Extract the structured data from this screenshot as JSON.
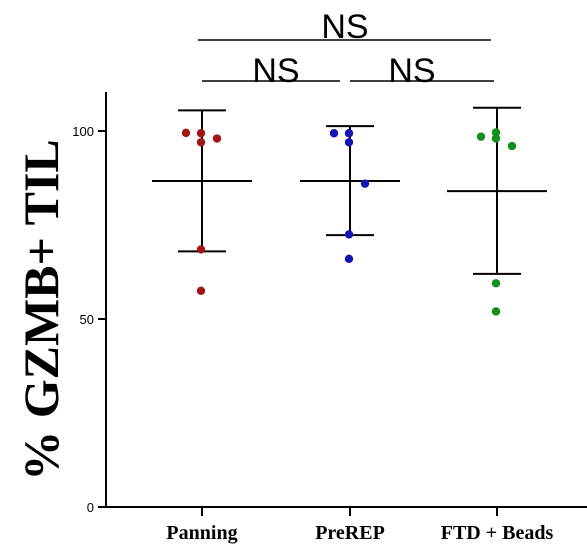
{
  "chart_data": {
    "type": "scatter",
    "ylabel": "% GZMB+ TIL",
    "ylim": [
      0,
      110
    ],
    "yticks": [
      0,
      50,
      100
    ],
    "categories": [
      "Panning",
      "PreREP",
      "FTD + Beads"
    ],
    "series": [
      {
        "category": "Panning",
        "color": "#a31515",
        "values": [
          99.5,
          99.4,
          97.0,
          98.0,
          68.5,
          57.5
        ],
        "mean": 86.7,
        "sd_upper": 105.5,
        "sd_lower": 68.0
      },
      {
        "category": "PreREP",
        "color": "#1414b4",
        "values": [
          99.4,
          99.4,
          97.0,
          86.0,
          72.5,
          66.0
        ],
        "mean": 86.7,
        "sd_upper": 101.3,
        "sd_lower": 72.3
      },
      {
        "category": "FTD + Beads",
        "color": "#12901c",
        "values": [
          98.5,
          99.6,
          98.0,
          96.0,
          59.5,
          52.0
        ],
        "mean": 84.0,
        "sd_upper": 106.2,
        "sd_lower": 62.0
      }
    ],
    "comparisons": [
      {
        "label": "NS",
        "from": "Panning",
        "to": "FTD + Beads"
      },
      {
        "label": "NS",
        "from": "Panning",
        "to": "PreREP"
      },
      {
        "label": "NS",
        "from": "PreREP",
        "to": "FTD + Beads"
      }
    ]
  }
}
